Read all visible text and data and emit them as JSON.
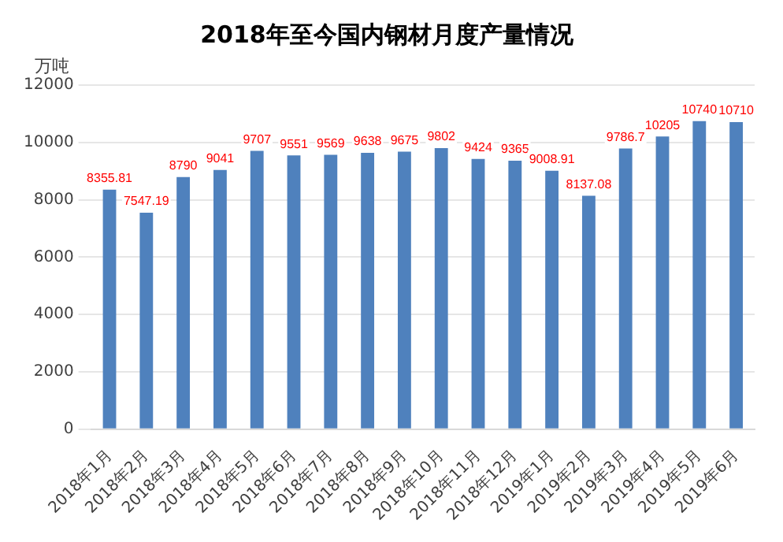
{
  "chart_data": {
    "type": "bar",
    "title": "2018年至今国内钢材月度产量情况",
    "ylabel": "万吨",
    "categories": [
      "2018年1月",
      "2018年2月",
      "2018年3月",
      "2018年4月",
      "2018年5月",
      "2018年6月",
      "2018年7月",
      "2018年8月",
      "2018年9月",
      "2018年10月",
      "2018年11月",
      "2018年12月",
      "2019年1月",
      "2019年2月",
      "2019年3月",
      "2019年4月",
      "2019年5月",
      "2019年6月"
    ],
    "values": [
      8355.81,
      7547.19,
      8790,
      9041,
      9707,
      9551,
      9569,
      9638,
      9675,
      9802,
      9424,
      9365,
      9008.91,
      8137.08,
      9786.7,
      10205,
      10740,
      10710
    ],
    "color": "#4f81bd",
    "ylim": [
      0,
      12000
    ],
    "yticks": [
      0,
      2000,
      4000,
      6000,
      8000,
      10000,
      12000
    ],
    "grid": "y",
    "data_labels": true,
    "legend": false
  }
}
